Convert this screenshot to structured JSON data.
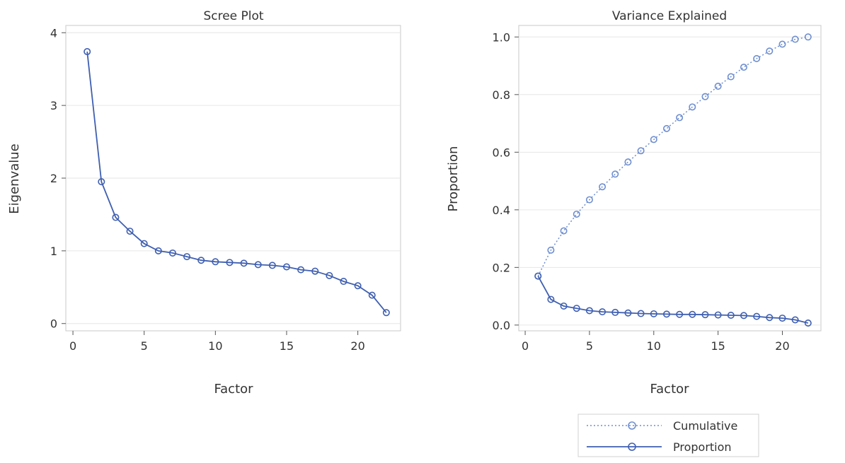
{
  "chart_data": [
    {
      "type": "line",
      "title": "Scree Plot",
      "xlabel": "Factor",
      "ylabel": "Eigenvalue",
      "xlim": [
        -0.5,
        23
      ],
      "ylim": [
        -0.1,
        4.1
      ],
      "xticks": [
        0,
        5,
        10,
        15,
        20
      ],
      "xtick_labels": [
        "0",
        "5",
        "10",
        "15",
        "20"
      ],
      "yticks": [
        0,
        1,
        2,
        3,
        4
      ],
      "ytick_labels": [
        "0",
        "1",
        "2",
        "3",
        "4"
      ],
      "grid": "horizontal",
      "x": [
        1,
        2,
        3,
        4,
        5,
        6,
        7,
        8,
        9,
        10,
        11,
        12,
        13,
        14,
        15,
        16,
        17,
        18,
        19,
        20,
        21,
        22
      ],
      "series": [
        {
          "values": [
            3.74,
            1.95,
            1.46,
            1.27,
            1.1,
            1.0,
            0.97,
            0.92,
            0.87,
            0.85,
            0.84,
            0.83,
            0.81,
            0.8,
            0.78,
            0.74,
            0.72,
            0.66,
            0.58,
            0.52,
            0.39,
            0.15
          ],
          "style": "solid",
          "color": "#3f5fb0"
        }
      ]
    },
    {
      "type": "line",
      "title": "Variance Explained",
      "xlabel": "Factor",
      "ylabel": "Proportion",
      "xlim": [
        -0.5,
        23
      ],
      "ylim": [
        -0.02,
        1.04
      ],
      "xticks": [
        0,
        5,
        10,
        15,
        20
      ],
      "xtick_labels": [
        "0",
        "5",
        "10",
        "15",
        "20"
      ],
      "yticks": [
        0,
        0.2,
        0.4,
        0.6,
        0.8,
        1.0
      ],
      "ytick_labels": [
        "0.0",
        "0.2",
        "0.4",
        "0.6",
        "0.8",
        "1.0"
      ],
      "grid": "horizontal",
      "legend_position": "bottom",
      "x": [
        1,
        2,
        3,
        4,
        5,
        6,
        7,
        8,
        9,
        10,
        11,
        12,
        13,
        14,
        15,
        16,
        17,
        18,
        19,
        20,
        21,
        22
      ],
      "series": [
        {
          "name": "Cumulative",
          "values": [
            0.17,
            0.26,
            0.327,
            0.385,
            0.435,
            0.48,
            0.524,
            0.566,
            0.605,
            0.644,
            0.682,
            0.72,
            0.757,
            0.793,
            0.829,
            0.862,
            0.895,
            0.925,
            0.951,
            0.975,
            0.992,
            1.0
          ],
          "style": "dotted",
          "color": "#6f8fd0"
        },
        {
          "name": "Proportion",
          "values": [
            0.17,
            0.089,
            0.066,
            0.058,
            0.05,
            0.046,
            0.044,
            0.042,
            0.04,
            0.039,
            0.038,
            0.037,
            0.037,
            0.036,
            0.035,
            0.034,
            0.033,
            0.03,
            0.026,
            0.024,
            0.018,
            0.007
          ],
          "style": "solid",
          "color": "#3f5fb0"
        }
      ]
    }
  ]
}
